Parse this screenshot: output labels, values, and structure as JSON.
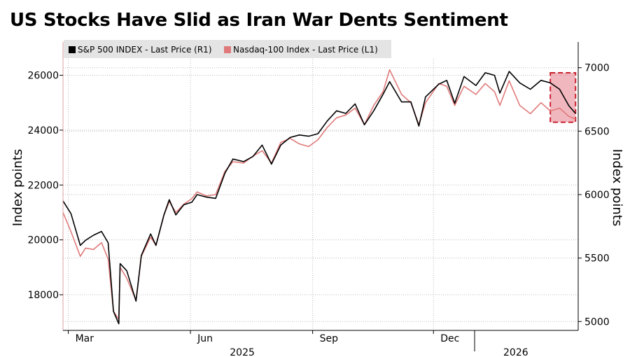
{
  "title": "US Stocks Have Slid as Iran War Dents Sentiment",
  "legend": {
    "sp500": "S&P 500 INDEX - Last Price (R1)",
    "ndx": "Nasdaq-100 Index - Last Price (L1)"
  },
  "colors": {
    "sp500": "#000000",
    "ndx": "#e07a7a",
    "highlight_fill": "#e57c88",
    "highlight_border": "#c8202e",
    "grid": "#bdbdbd",
    "legend_bg": "#e4e4e4"
  },
  "chart_data": {
    "type": "line",
    "title": "US Stocks Have Slid as Iran War Dents Sentiment",
    "x_range": [
      "2025-02-25",
      "2026-03-20"
    ],
    "x_ticks": [
      {
        "label": "Mar",
        "date": "2025-03-01"
      },
      {
        "label": "Jun",
        "date": "2025-06-01"
      },
      {
        "label": "Sep",
        "date": "2025-09-01"
      },
      {
        "label": "Dec",
        "date": "2025-12-01"
      }
    ],
    "x_year_labels": [
      {
        "label": "2025",
        "date": "2025-07-10"
      },
      {
        "label": "2026",
        "date": "2026-02-01"
      }
    ],
    "x_year_divider": "2026-01-01",
    "left_axis": {
      "label": "Index points",
      "ticks": [
        18000,
        20000,
        22000,
        24000,
        26000
      ],
      "range": [
        16700,
        26600
      ]
    },
    "right_axis": {
      "label": "Index points",
      "ticks": [
        5000,
        5500,
        6000,
        6500,
        7000
      ],
      "range": [
        4930,
        7070
      ]
    },
    "highlight": {
      "start": "2026-02-27",
      "end": "2026-03-18",
      "note": "Iran war period"
    },
    "series": [
      {
        "name": "S&P 500 INDEX - Last Price",
        "axis": "right",
        "points": [
          [
            "2025-02-25",
            5950
          ],
          [
            "2025-03-03",
            5850
          ],
          [
            "2025-03-10",
            5600
          ],
          [
            "2025-03-14",
            5640
          ],
          [
            "2025-03-20",
            5680
          ],
          [
            "2025-03-26",
            5710
          ],
          [
            "2025-03-31",
            5620
          ],
          [
            "2025-04-04",
            5080
          ],
          [
            "2025-04-08",
            4982
          ],
          [
            "2025-04-09",
            5456
          ],
          [
            "2025-04-14",
            5400
          ],
          [
            "2025-04-21",
            5160
          ],
          [
            "2025-04-25",
            5520
          ],
          [
            "2025-05-02",
            5690
          ],
          [
            "2025-05-06",
            5600
          ],
          [
            "2025-05-12",
            5840
          ],
          [
            "2025-05-16",
            5960
          ],
          [
            "2025-05-21",
            5840
          ],
          [
            "2025-05-27",
            5920
          ],
          [
            "2025-06-02",
            5940
          ],
          [
            "2025-06-06",
            6000
          ],
          [
            "2025-06-13",
            5980
          ],
          [
            "2025-06-20",
            5970
          ],
          [
            "2025-06-27",
            6170
          ],
          [
            "2025-07-03",
            6280
          ],
          [
            "2025-07-11",
            6260
          ],
          [
            "2025-07-18",
            6300
          ],
          [
            "2025-07-25",
            6390
          ],
          [
            "2025-08-01",
            6240
          ],
          [
            "2025-08-08",
            6390
          ],
          [
            "2025-08-15",
            6450
          ],
          [
            "2025-08-22",
            6470
          ],
          [
            "2025-08-29",
            6460
          ],
          [
            "2025-09-05",
            6480
          ],
          [
            "2025-09-12",
            6580
          ],
          [
            "2025-09-19",
            6660
          ],
          [
            "2025-09-26",
            6640
          ],
          [
            "2025-10-03",
            6715
          ],
          [
            "2025-10-10",
            6550
          ],
          [
            "2025-10-17",
            6660
          ],
          [
            "2025-10-24",
            6790
          ],
          [
            "2025-10-29",
            6890
          ],
          [
            "2025-11-07",
            6730
          ],
          [
            "2025-11-14",
            6730
          ],
          [
            "2025-11-20",
            6540
          ],
          [
            "2025-11-25",
            6770
          ],
          [
            "2025-12-05",
            6870
          ],
          [
            "2025-12-11",
            6900
          ],
          [
            "2025-12-17",
            6720
          ],
          [
            "2025-12-24",
            6930
          ],
          [
            "2026-01-02",
            6860
          ],
          [
            "2026-01-09",
            6960
          ],
          [
            "2026-01-16",
            6940
          ],
          [
            "2026-01-20",
            6800
          ],
          [
            "2026-01-27",
            6970
          ],
          [
            "2026-02-04",
            6880
          ],
          [
            "2026-02-12",
            6830
          ],
          [
            "2026-02-20",
            6900
          ],
          [
            "2026-02-27",
            6880
          ],
          [
            "2026-03-06",
            6830
          ],
          [
            "2026-03-13",
            6700
          ],
          [
            "2026-03-18",
            6640
          ]
        ]
      },
      {
        "name": "Nasdaq-100 Index - Last Price",
        "axis": "left",
        "points": [
          [
            "2025-02-25",
            21000
          ],
          [
            "2025-03-03",
            20300
          ],
          [
            "2025-03-10",
            19400
          ],
          [
            "2025-03-14",
            19700
          ],
          [
            "2025-03-20",
            19650
          ],
          [
            "2025-03-26",
            19900
          ],
          [
            "2025-03-31",
            19300
          ],
          [
            "2025-04-04",
            17400
          ],
          [
            "2025-04-08",
            17100
          ],
          [
            "2025-04-09",
            19000
          ],
          [
            "2025-04-14",
            18600
          ],
          [
            "2025-04-21",
            17800
          ],
          [
            "2025-04-25",
            19400
          ],
          [
            "2025-05-02",
            20100
          ],
          [
            "2025-05-06",
            19800
          ],
          [
            "2025-05-12",
            20900
          ],
          [
            "2025-05-16",
            21400
          ],
          [
            "2025-05-21",
            21000
          ],
          [
            "2025-05-27",
            21300
          ],
          [
            "2025-06-02",
            21500
          ],
          [
            "2025-06-06",
            21750
          ],
          [
            "2025-06-13",
            21600
          ],
          [
            "2025-06-20",
            21650
          ],
          [
            "2025-06-27",
            22500
          ],
          [
            "2025-07-03",
            22850
          ],
          [
            "2025-07-11",
            22800
          ],
          [
            "2025-07-18",
            23050
          ],
          [
            "2025-07-25",
            23250
          ],
          [
            "2025-08-01",
            22800
          ],
          [
            "2025-08-08",
            23550
          ],
          [
            "2025-08-15",
            23700
          ],
          [
            "2025-08-22",
            23500
          ],
          [
            "2025-08-29",
            23400
          ],
          [
            "2025-09-05",
            23650
          ],
          [
            "2025-09-12",
            24100
          ],
          [
            "2025-09-19",
            24450
          ],
          [
            "2025-09-26",
            24550
          ],
          [
            "2025-10-03",
            24800
          ],
          [
            "2025-10-10",
            24200
          ],
          [
            "2025-10-17",
            24900
          ],
          [
            "2025-10-24",
            25400
          ],
          [
            "2025-10-29",
            26200
          ],
          [
            "2025-11-07",
            25300
          ],
          [
            "2025-11-14",
            25000
          ],
          [
            "2025-11-20",
            24200
          ],
          [
            "2025-11-25",
            25000
          ],
          [
            "2025-12-05",
            25700
          ],
          [
            "2025-12-11",
            25600
          ],
          [
            "2025-12-17",
            24900
          ],
          [
            "2025-12-24",
            25600
          ],
          [
            "2026-01-02",
            25300
          ],
          [
            "2026-01-09",
            25700
          ],
          [
            "2026-01-16",
            25400
          ],
          [
            "2026-01-20",
            24900
          ],
          [
            "2026-01-27",
            25800
          ],
          [
            "2026-02-04",
            24900
          ],
          [
            "2026-02-12",
            24600
          ],
          [
            "2026-02-20",
            25000
          ],
          [
            "2026-02-27",
            24700
          ],
          [
            "2026-03-06",
            24800
          ],
          [
            "2026-03-13",
            24500
          ],
          [
            "2026-03-18",
            24400
          ]
        ]
      }
    ]
  }
}
